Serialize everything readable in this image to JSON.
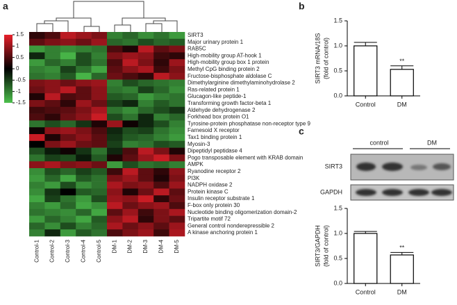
{
  "chart_data": [
    {
      "type": "heatmap",
      "label": "a",
      "columns": [
        "Control-1",
        "Control-2",
        "Control-3",
        "Control-4",
        "Control-5",
        "DM-1",
        "DM-2",
        "DM-3",
        "DM-4",
        "DM-5"
      ],
      "rows": [
        "SIRT3",
        "Major urinary protein 1",
        "RAB5C",
        "High-mobility group AT-hook 1",
        "High-mobility group box 1 protein",
        "Methyl CpG binding protein 2",
        "Fructose-bisphosphate aldolase C",
        "Dimethylarginine dimethylaminohydrolase 2",
        "Ras-related protein 1",
        "Glucagon-like peptide-1",
        "Transforming growth factor-beta 1",
        "Aldehyde dehydrogenase 2",
        "Forkhead box protein O1",
        "Tyrosine-protein phosphatase non-receptor type 9",
        "Farnesoid X receptor",
        "Tax1 binding protein 1",
        "Myosin-3",
        "Dipeptidyl peptidase 4",
        "Pogo transposable element with KRAB domain",
        "AMPK",
        "Ryanodine receptor 2",
        "PI3K",
        "NADPH oxidase 2",
        "Protein kinase C",
        "Insulin receptor substrate 1",
        "F-box only protein 30",
        "Nucleotide binding oligomerization domain-2",
        "Tripartite motif 72",
        "General control nonderepressible 2",
        "A kinase anchoring protein 1"
      ],
      "values": [
        [
          0.3,
          0.5,
          1.2,
          1.0,
          0.8,
          -1.0,
          -0.8,
          -1.1,
          -0.9,
          -1.2
        ],
        [
          0.6,
          0.8,
          0.9,
          0.7,
          1.0,
          -0.8,
          -0.9,
          -0.6,
          -0.8,
          -0.7
        ],
        [
          -1.2,
          -1.0,
          -1.1,
          -1.0,
          -0.9,
          0.5,
          0.2,
          1.2,
          0.6,
          0.8
        ],
        [
          -0.3,
          -1.0,
          -1.4,
          -0.6,
          -1.0,
          0.8,
          1.0,
          0.9,
          0.4,
          0.3
        ],
        [
          -1.2,
          -0.8,
          -1.0,
          -0.6,
          -0.9,
          0.5,
          1.2,
          0.8,
          0.3,
          1.0
        ],
        [
          -1.0,
          -1.1,
          -0.5,
          -0.9,
          -1.3,
          0.6,
          0.9,
          1.1,
          0.4,
          0.8
        ],
        [
          -0.9,
          -1.0,
          -0.7,
          -1.4,
          -0.8,
          0.7,
          0.5,
          0.3,
          1.2,
          0.9
        ],
        [
          0.8,
          0.9,
          0.7,
          0.9,
          1.0,
          -1.0,
          -0.6,
          -0.8,
          -0.9,
          -1.0
        ],
        [
          0.7,
          0.9,
          1.2,
          0.6,
          0.9,
          -0.9,
          -1.0,
          -0.5,
          -0.8,
          -1.1
        ],
        [
          0.2,
          1.2,
          0.5,
          0.6,
          0.9,
          -0.7,
          -0.8,
          -1.2,
          -1.0,
          -0.9
        ],
        [
          0.8,
          0.6,
          0.3,
          1.0,
          0.7,
          -0.5,
          -0.3,
          -1.0,
          -0.7,
          -0.9
        ],
        [
          0.4,
          0.5,
          0.6,
          0.8,
          1.1,
          -0.9,
          -1.1,
          -0.8,
          -0.6,
          -0.4
        ],
        [
          0.5,
          0.3,
          0.7,
          0.9,
          1.3,
          -0.6,
          -0.9,
          -0.3,
          -1.0,
          -0.8
        ],
        [
          -0.9,
          -0.6,
          -0.8,
          -0.4,
          0.2,
          1.0,
          0.1,
          -0.3,
          -0.6,
          -1.0
        ],
        [
          0.1,
          0.9,
          1.0,
          0.8,
          0.5,
          -0.3,
          -0.6,
          -0.5,
          -0.9,
          -1.1
        ],
        [
          1.3,
          0.2,
          0.7,
          0.9,
          0.6,
          -0.4,
          -0.7,
          -0.8,
          -1.0,
          -1.2
        ],
        [
          0.0,
          0.8,
          1.0,
          0.7,
          0.6,
          -0.5,
          -1.0,
          -0.9,
          -0.6,
          -0.7
        ],
        [
          -0.6,
          -0.2,
          0.1,
          -0.4,
          -0.9,
          -0.3,
          0.5,
          1.2,
          0.8,
          0.2
        ],
        [
          -0.9,
          -0.5,
          -0.6,
          -0.2,
          -0.7,
          0.2,
          0.6,
          1.0,
          1.3,
          0.8
        ],
        [
          0.9,
          1.1,
          0.8,
          0.9,
          0.7,
          -1.2,
          -0.6,
          -0.9,
          -0.8,
          -1.0
        ],
        [
          -1.1,
          -0.6,
          -0.8,
          -0.5,
          -0.7,
          0.4,
          1.2,
          0.6,
          0.3,
          0.9
        ],
        [
          -1.2,
          -0.8,
          -1.3,
          -0.7,
          -0.9,
          0.8,
          1.0,
          0.6,
          0.2,
          0.8
        ],
        [
          -1.0,
          -1.2,
          -0.6,
          -1.1,
          -0.9,
          1.1,
          0.8,
          0.9,
          0.5,
          1.0
        ],
        [
          -1.1,
          -0.4,
          0.0,
          -0.7,
          -0.8,
          0.9,
          0.2,
          0.7,
          1.2,
          0.6
        ],
        [
          -1.3,
          -0.5,
          -0.9,
          -1.2,
          -0.6,
          1.0,
          0.9,
          1.3,
          0.3,
          0.7
        ],
        [
          -1.0,
          -1.2,
          -0.8,
          -1.3,
          -1.1,
          1.2,
          0.7,
          0.9,
          1.0,
          0.5
        ],
        [
          -0.9,
          -1.0,
          -1.1,
          -0.8,
          -1.3,
          0.6,
          1.0,
          0.4,
          0.8,
          1.1
        ],
        [
          -1.2,
          -0.8,
          -1.0,
          -1.3,
          -0.7,
          0.9,
          1.2,
          0.3,
          0.8,
          0.6
        ],
        [
          -0.8,
          -1.1,
          -0.6,
          -1.0,
          -0.8,
          1.1,
          0.7,
          0.9,
          0.6,
          1.0
        ],
        [
          -1.0,
          -0.3,
          -1.2,
          -0.7,
          -0.9,
          0.5,
          0.8,
          1.0,
          0.4,
          1.1
        ]
      ],
      "zlim": [
        -1.5,
        1.5
      ],
      "zticks": [
        1.5,
        1,
        0.5,
        0,
        -0.5,
        -1,
        -1.5
      ],
      "colormap": [
        "#4cc04c",
        "#000000",
        "#e8202a"
      ]
    },
    {
      "type": "bar",
      "label": "b",
      "ylabel": [
        "SIRT3 mRNA/18S",
        "(fold of control)"
      ],
      "categories": [
        "Control",
        "DM"
      ],
      "values": [
        1.0,
        0.53
      ],
      "errors": [
        0.07,
        0.07
      ],
      "annotations": [
        null,
        "**"
      ],
      "color": "#ffffff",
      "ylim": [
        0,
        1.5
      ],
      "yticks": [
        {
          "value": 0,
          "label": "0.0"
        },
        {
          "value": 0.5,
          "label": "0.5"
        },
        {
          "value": 1,
          "label": "1.0"
        },
        {
          "value": 1.5,
          "label": "1.5"
        }
      ]
    },
    {
      "type": "bar",
      "label": "c",
      "ylabel": [
        "SIRT3/GAPDH",
        "(fold of control)"
      ],
      "categories": [
        "Control",
        "DM"
      ],
      "values": [
        1.0,
        0.57
      ],
      "errors": [
        0.04,
        0.05
      ],
      "annotations": [
        null,
        "**"
      ],
      "color": "#ffffff",
      "ylim": [
        0,
        1.5
      ],
      "yticks": [
        {
          "value": 0,
          "label": "0.0"
        },
        {
          "value": 0.5,
          "label": "0.5"
        },
        {
          "value": 1,
          "label": "1.0"
        },
        {
          "value": 1.5,
          "label": "1.5"
        }
      ],
      "blot": {
        "groups": [
          "control",
          "DM"
        ],
        "bands": [
          "SIRT3",
          "GAPDH"
        ]
      }
    }
  ]
}
